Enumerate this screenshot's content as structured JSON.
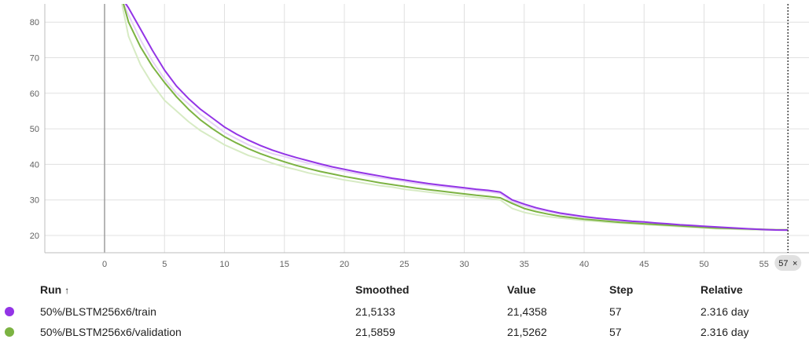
{
  "chart_data": {
    "type": "line",
    "title": "",
    "xlabel": "",
    "ylabel": "",
    "xlim": [
      -5,
      56.5
    ],
    "ylim": [
      15,
      85
    ],
    "x_ticks": [
      0,
      5,
      10,
      15,
      20,
      25,
      30,
      35,
      40,
      45,
      50,
      55
    ],
    "y_ticks": [
      20,
      30,
      40,
      50,
      60,
      70,
      80
    ],
    "grid": true,
    "cursor_step": 57,
    "cursor_badge": "57",
    "series": [
      {
        "color": "#9334e6",
        "raw_color": "#e7d2f8",
        "smoothed": [
          [
            1.6,
            86
          ],
          [
            2,
            84
          ],
          [
            3,
            78
          ],
          [
            4,
            72
          ],
          [
            5,
            66.5
          ],
          [
            6,
            62
          ],
          [
            7,
            58.5
          ],
          [
            8,
            55.5
          ],
          [
            9,
            53
          ],
          [
            10,
            50.5
          ],
          [
            11,
            48.5
          ],
          [
            12,
            46.8
          ],
          [
            13,
            45.3
          ],
          [
            14,
            44
          ],
          [
            15,
            42.9
          ],
          [
            16,
            41.9
          ],
          [
            17,
            41
          ],
          [
            18,
            40.1
          ],
          [
            19,
            39.3
          ],
          [
            20,
            38.6
          ],
          [
            21,
            37.9
          ],
          [
            22,
            37.3
          ],
          [
            23,
            36.7
          ],
          [
            24,
            36.1
          ],
          [
            25,
            35.6
          ],
          [
            26,
            35.1
          ],
          [
            27,
            34.6
          ],
          [
            28,
            34.2
          ],
          [
            29,
            33.8
          ],
          [
            30,
            33.4
          ],
          [
            31,
            33
          ],
          [
            32,
            32.7
          ],
          [
            33,
            32.2
          ],
          [
            34,
            30
          ],
          [
            35,
            28.8
          ],
          [
            36,
            27.8
          ],
          [
            37,
            27
          ],
          [
            38,
            26.3
          ],
          [
            39,
            25.8
          ],
          [
            40,
            25.3
          ],
          [
            41,
            24.9
          ],
          [
            42,
            24.6
          ],
          [
            43,
            24.3
          ],
          [
            44,
            24
          ],
          [
            45,
            23.8
          ],
          [
            46,
            23.5
          ],
          [
            47,
            23.3
          ],
          [
            48,
            23
          ],
          [
            49,
            22.8
          ],
          [
            50,
            22.6
          ],
          [
            51,
            22.4
          ],
          [
            52,
            22.2
          ],
          [
            53,
            22
          ],
          [
            54,
            21.8
          ],
          [
            55,
            21.65
          ],
          [
            56,
            21.55
          ],
          [
            57,
            21.5133
          ]
        ],
        "raw": [
          [
            1.5,
            86
          ],
          [
            2,
            82
          ],
          [
            3,
            75
          ],
          [
            4,
            69
          ],
          [
            5,
            64
          ],
          [
            6,
            60
          ],
          [
            7,
            57
          ],
          [
            8,
            54
          ],
          [
            9,
            51.5
          ],
          [
            10,
            49
          ],
          [
            11,
            47.2
          ],
          [
            12,
            45.5
          ],
          [
            13,
            44.2
          ],
          [
            14,
            43
          ],
          [
            15,
            42.2
          ],
          [
            16,
            41.2
          ],
          [
            17,
            40.3
          ],
          [
            18,
            39.6
          ],
          [
            19,
            38.7
          ],
          [
            20,
            38.1
          ],
          [
            21,
            37.4
          ],
          [
            22,
            36.8
          ],
          [
            23,
            36.2
          ],
          [
            24,
            35.8
          ],
          [
            25,
            35.2
          ],
          [
            26,
            34.6
          ],
          [
            27,
            34.2
          ],
          [
            28,
            33.8
          ],
          [
            29,
            33.4
          ],
          [
            30,
            33
          ],
          [
            31,
            32.6
          ],
          [
            32,
            32.3
          ],
          [
            33,
            31.8
          ],
          [
            34,
            29.5
          ],
          [
            35,
            28.3
          ],
          [
            36,
            27.4
          ],
          [
            37,
            26.7
          ],
          [
            38,
            26
          ],
          [
            39,
            25.5
          ],
          [
            40,
            25.1
          ],
          [
            41,
            24.7
          ],
          [
            42,
            24.4
          ],
          [
            43,
            24.1
          ],
          [
            44,
            23.8
          ],
          [
            45,
            23.6
          ],
          [
            46,
            23.3
          ],
          [
            47,
            23.1
          ],
          [
            48,
            22.9
          ],
          [
            49,
            22.6
          ],
          [
            50,
            22.4
          ],
          [
            51,
            22.2
          ],
          [
            52,
            22
          ],
          [
            53,
            21.8
          ],
          [
            54,
            21.7
          ],
          [
            55,
            21.6
          ],
          [
            56,
            21.5
          ],
          [
            57,
            21.4358
          ]
        ]
      },
      {
        "color": "#7cb342",
        "raw_color": "#d7ebc4",
        "smoothed": [
          [
            1.5,
            86
          ],
          [
            2,
            80
          ],
          [
            3,
            73
          ],
          [
            4,
            67.5
          ],
          [
            5,
            63
          ],
          [
            6,
            59
          ],
          [
            7,
            55.5
          ],
          [
            8,
            52.5
          ],
          [
            9,
            50
          ],
          [
            10,
            47.8
          ],
          [
            11,
            46
          ],
          [
            12,
            44.4
          ],
          [
            13,
            43
          ],
          [
            14,
            41.8
          ],
          [
            15,
            40.7
          ],
          [
            16,
            39.7
          ],
          [
            17,
            38.8
          ],
          [
            18,
            38
          ],
          [
            19,
            37.3
          ],
          [
            20,
            36.6
          ],
          [
            21,
            36
          ],
          [
            22,
            35.4
          ],
          [
            23,
            34.8
          ],
          [
            24,
            34.3
          ],
          [
            25,
            33.8
          ],
          [
            26,
            33.3
          ],
          [
            27,
            32.9
          ],
          [
            28,
            32.5
          ],
          [
            29,
            32.1
          ],
          [
            30,
            31.7
          ],
          [
            31,
            31.3
          ],
          [
            32,
            31
          ],
          [
            33,
            30.6
          ],
          [
            34,
            29
          ],
          [
            35,
            27.6
          ],
          [
            36,
            26.7
          ],
          [
            37,
            26
          ],
          [
            38,
            25.4
          ],
          [
            39,
            25
          ],
          [
            40,
            24.6
          ],
          [
            41,
            24.3
          ],
          [
            42,
            24
          ],
          [
            43,
            23.7
          ],
          [
            44,
            23.5
          ],
          [
            45,
            23.3
          ],
          [
            46,
            23.1
          ],
          [
            47,
            22.9
          ],
          [
            48,
            22.7
          ],
          [
            49,
            22.5
          ],
          [
            50,
            22.3
          ],
          [
            51,
            22.1
          ],
          [
            52,
            22
          ],
          [
            53,
            21.9
          ],
          [
            54,
            21.8
          ],
          [
            55,
            21.7
          ],
          [
            56,
            21.6
          ],
          [
            57,
            21.5859
          ]
        ],
        "raw": [
          [
            1.4,
            86
          ],
          [
            2,
            76
          ],
          [
            3,
            68
          ],
          [
            4,
            62.5
          ],
          [
            5,
            58
          ],
          [
            6,
            55
          ],
          [
            7,
            52
          ],
          [
            8,
            49.5
          ],
          [
            9,
            47.5
          ],
          [
            10,
            45.5
          ],
          [
            11,
            44
          ],
          [
            12,
            42.5
          ],
          [
            13,
            41.5
          ],
          [
            14,
            40.3
          ],
          [
            15,
            39.3
          ],
          [
            16,
            38.5
          ],
          [
            17,
            37.6
          ],
          [
            18,
            36.9
          ],
          [
            19,
            36.3
          ],
          [
            20,
            35.6
          ],
          [
            21,
            35.1
          ],
          [
            22,
            34.5
          ],
          [
            23,
            34
          ],
          [
            24,
            33.6
          ],
          [
            25,
            33
          ],
          [
            26,
            32.6
          ],
          [
            27,
            32.2
          ],
          [
            28,
            31.8
          ],
          [
            29,
            31.4
          ],
          [
            30,
            31.1
          ],
          [
            31,
            30.7
          ],
          [
            32,
            30.4
          ],
          [
            33,
            30
          ],
          [
            34,
            27.6
          ],
          [
            35,
            26.5
          ],
          [
            36,
            25.8
          ],
          [
            37,
            25.3
          ],
          [
            38,
            24.9
          ],
          [
            39,
            24.6
          ],
          [
            40,
            24.2
          ],
          [
            41,
            24
          ],
          [
            42,
            23.7
          ],
          [
            43,
            23.5
          ],
          [
            44,
            23.3
          ],
          [
            45,
            23.1
          ],
          [
            46,
            22.9
          ],
          [
            47,
            22.7
          ],
          [
            48,
            22.5
          ],
          [
            49,
            22.3
          ],
          [
            50,
            22.1
          ],
          [
            51,
            21.9
          ],
          [
            52,
            21.8
          ],
          [
            53,
            21.7
          ],
          [
            54,
            21.6
          ],
          [
            55,
            21.6
          ],
          [
            56,
            21.55
          ],
          [
            57,
            21.5262
          ]
        ]
      }
    ]
  },
  "table": {
    "headers": {
      "run": "Run",
      "sort_icon": "↑",
      "smoothed": "Smoothed",
      "value": "Value",
      "step": "Step",
      "relative": "Relative"
    },
    "rows": [
      {
        "color": "#9334e6",
        "run": "50%/BLSTM256x6/train",
        "smoothed": "21,5133",
        "value": "21,4358",
        "step": "57",
        "relative": "2.316 day"
      },
      {
        "color": "#7cb342",
        "run": "50%/BLSTM256x6/validation",
        "smoothed": "21,5859",
        "value": "21,5262",
        "step": "57",
        "relative": "2.316 day"
      }
    ]
  }
}
